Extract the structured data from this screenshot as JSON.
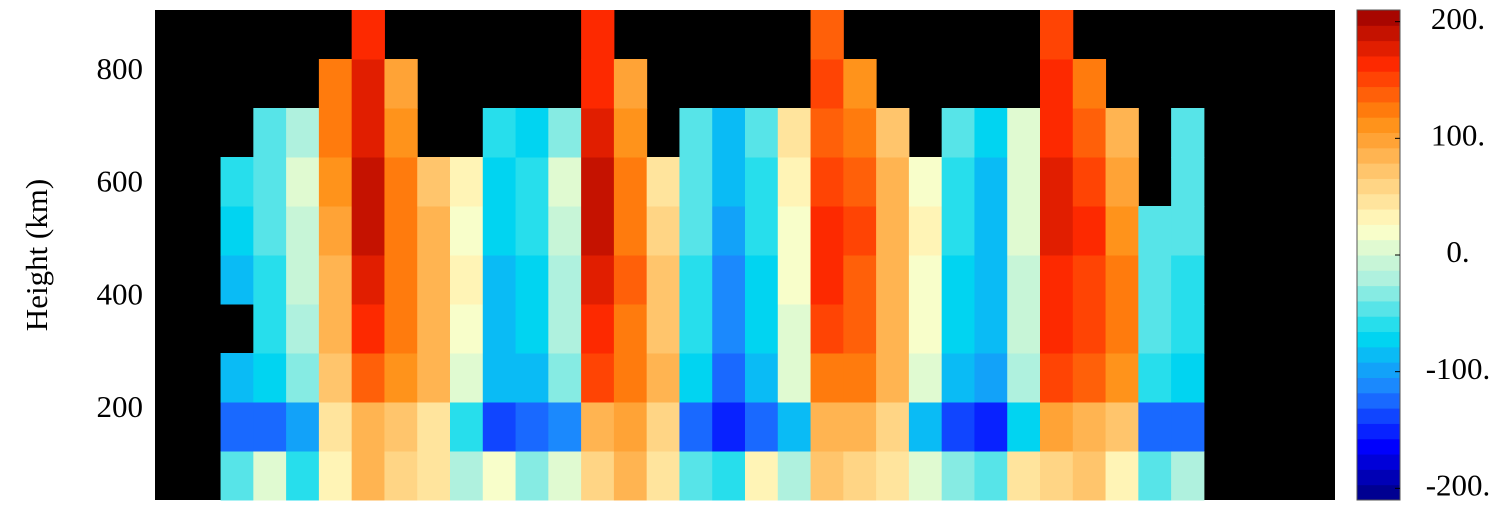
{
  "chart_data": {
    "type": "heatmap",
    "y_label": "Height (km)",
    "ylim": [
      40,
      910
    ],
    "yticks": [
      200,
      400,
      600,
      800
    ],
    "clim": [
      -210,
      210
    ],
    "cticks": [
      {
        "value": 200,
        "label": "200."
      },
      {
        "value": 100,
        "label": "100."
      },
      {
        "value": 0,
        "label": "0."
      },
      {
        "value": -100,
        "label": "-100."
      },
      {
        "value": -200,
        "label": "-200."
      }
    ],
    "colorscale": [
      "#00007f",
      "#0000ff",
      "#1e7fff",
      "#00d8f0",
      "#a8f0e0",
      "#ffffc8",
      "#ffc870",
      "#ff8c10",
      "#ff2a00",
      "#9a0000"
    ],
    "levels": 32,
    "background": "#000000",
    "z": [
      [
        null,
        null,
        -40,
        10,
        -60,
        30,
        80,
        60,
        40,
        -20,
        20,
        -30,
        10,
        60,
        90,
        40,
        -40,
        -60,
        30,
        -20,
        70,
        60,
        50,
        10,
        -30,
        -50,
        40,
        60,
        70,
        30,
        -40,
        -20,
        null,
        null,
        null,
        null
      ],
      [
        null,
        null,
        -130,
        -120,
        -100,
        40,
        90,
        70,
        50,
        -60,
        -140,
        -130,
        -110,
        80,
        100,
        60,
        -120,
        -150,
        -130,
        -90,
        80,
        90,
        60,
        -80,
        -140,
        -150,
        -70,
        100,
        90,
        70,
        -130,
        -120,
        null,
        null,
        null,
        null
      ],
      [
        null,
        null,
        -90,
        -70,
        -30,
        70,
        140,
        110,
        90,
        10,
        -90,
        -80,
        -30,
        150,
        130,
        80,
        -70,
        -120,
        -80,
        0,
        130,
        130,
        90,
        10,
        -80,
        -100,
        -20,
        150,
        140,
        110,
        -60,
        -70,
        null,
        null,
        null,
        null
      ],
      [
        null,
        null,
        null,
        -60,
        -20,
        80,
        160,
        120,
        90,
        20,
        -80,
        -70,
        -20,
        170,
        130,
        70,
        -60,
        -110,
        -70,
        10,
        150,
        140,
        90,
        20,
        -70,
        -90,
        -10,
        170,
        150,
        120,
        -50,
        -60,
        null,
        null,
        null,
        null
      ],
      [
        null,
        null,
        -80,
        -60,
        -10,
        90,
        180,
        120,
        90,
        30,
        -80,
        -70,
        -20,
        180,
        140,
        70,
        -60,
        -110,
        -70,
        20,
        160,
        140,
        90,
        20,
        -70,
        -90,
        -10,
        170,
        150,
        120,
        -50,
        -60,
        null,
        null,
        null,
        null
      ],
      [
        null,
        null,
        -70,
        -50,
        -10,
        100,
        190,
        130,
        80,
        20,
        -70,
        -60,
        -10,
        190,
        130,
        60,
        -50,
        -100,
        -60,
        20,
        160,
        150,
        90,
        30,
        -60,
        -80,
        0,
        180,
        160,
        110,
        -40,
        -50,
        null,
        null,
        null,
        null
      ],
      [
        null,
        null,
        -60,
        -50,
        0,
        110,
        190,
        120,
        70,
        30,
        -70,
        -60,
        0,
        190,
        120,
        50,
        -50,
        -90,
        -60,
        30,
        150,
        140,
        80,
        20,
        -60,
        -80,
        10,
        180,
        150,
        100,
        null,
        -50,
        null,
        null,
        null,
        null
      ],
      [
        null,
        null,
        null,
        -40,
        -20,
        120,
        180,
        110,
        null,
        null,
        -60,
        -70,
        -30,
        180,
        110,
        null,
        -40,
        -80,
        -50,
        40,
        140,
        130,
        70,
        null,
        -50,
        -70,
        0,
        170,
        140,
        90,
        null,
        -40,
        null,
        null,
        null,
        null
      ],
      [
        null,
        null,
        null,
        null,
        null,
        130,
        180,
        100,
        null,
        null,
        null,
        null,
        null,
        170,
        100,
        null,
        null,
        null,
        null,
        null,
        150,
        110,
        null,
        null,
        null,
        null,
        null,
        160,
        120,
        null,
        null,
        null,
        null,
        null,
        null,
        null
      ],
      [
        null,
        null,
        null,
        null,
        null,
        null,
        170,
        null,
        null,
        null,
        null,
        null,
        null,
        170,
        null,
        null,
        null,
        null,
        null,
        null,
        140,
        null,
        null,
        null,
        null,
        null,
        null,
        150,
        null,
        null,
        null,
        null,
        null,
        null,
        null,
        null
      ]
    ]
  }
}
